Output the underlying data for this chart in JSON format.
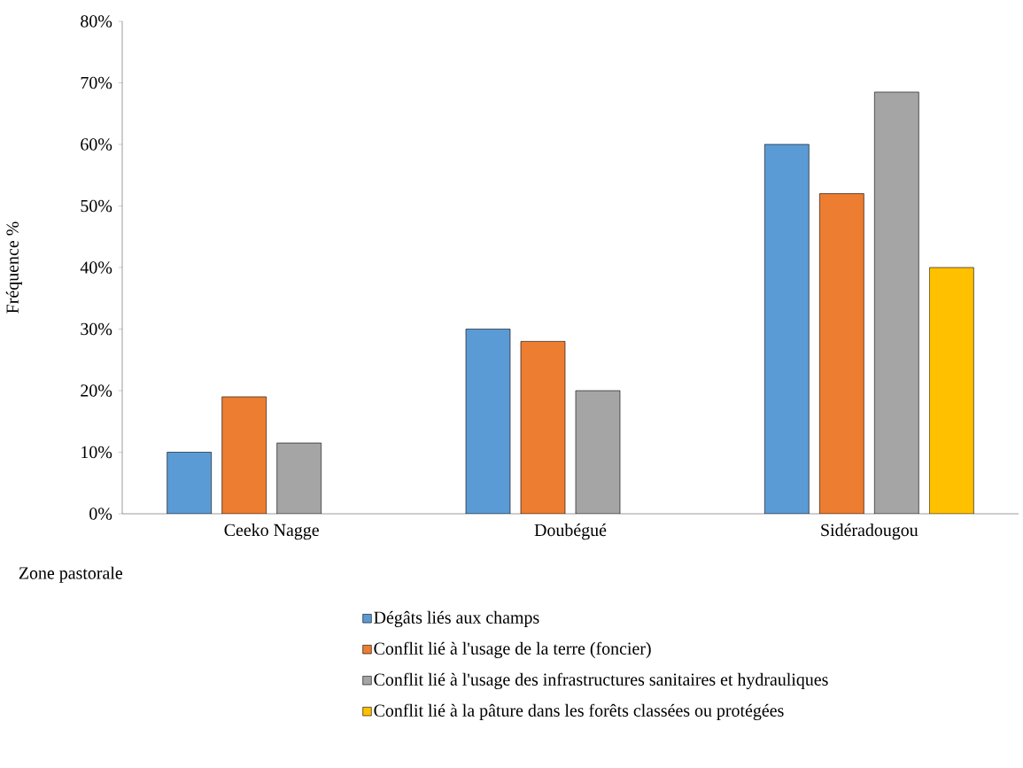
{
  "chart_data": {
    "type": "bar",
    "xlabel": "Zone pastorale",
    "ylabel": "Fréquence %",
    "categories": [
      "Ceeko Nagge",
      "Doubégué",
      "Sidéradougou"
    ],
    "series": [
      {
        "name": "Dégâts liés aux champs",
        "color": "#5b9bd5",
        "values": [
          10,
          30,
          60
        ]
      },
      {
        "name": "Conflit lié à l'usage de la terre (foncier)",
        "color": "#ed7d31",
        "values": [
          19,
          28,
          52
        ]
      },
      {
        "name": "Conflit lié à l'usage des infrastructures sanitaires et hydrauliques",
        "color": "#a5a5a5",
        "values": [
          11.5,
          20,
          68.5
        ]
      },
      {
        "name": "Conflit lié à la pâture dans les forêts classées ou protégées",
        "color": "#ffc000",
        "values": [
          null,
          null,
          40
        ]
      }
    ],
    "ylim": [
      0,
      80
    ],
    "yticks": [
      {
        "value": 0,
        "label": "0%"
      },
      {
        "value": 10,
        "label": "10%"
      },
      {
        "value": 20,
        "label": "20%"
      },
      {
        "value": 30,
        "label": "30%"
      },
      {
        "value": 40,
        "label": "40%"
      },
      {
        "value": 50,
        "label": "50%"
      },
      {
        "value": 60,
        "label": "60%"
      },
      {
        "value": 70,
        "label": "70%"
      },
      {
        "value": 80,
        "label": "80%"
      }
    ],
    "grid": false,
    "legend": "bottom"
  }
}
